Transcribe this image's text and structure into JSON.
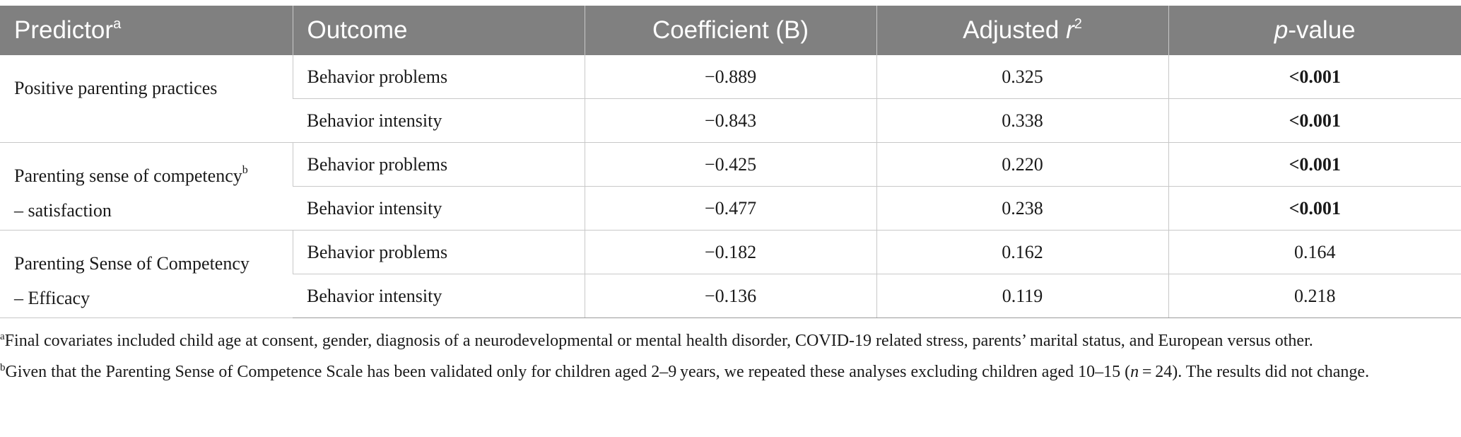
{
  "header": {
    "predictor": "Predictor",
    "predictor_sup": "a",
    "outcome": "Outcome",
    "coefficient": "Coefficient (B)",
    "adjusted_prefix": "Adjusted ",
    "adjusted_r": "r",
    "adjusted_sup": "2",
    "p_italic": "p",
    "p_rest": "-value"
  },
  "groups": [
    {
      "predictor_line1": "Positive parenting practices",
      "predictor_sup": "",
      "predictor_line2": "",
      "rows": [
        {
          "outcome": "Behavior problems",
          "coefficient": "−0.889",
          "adj_r2": "0.325",
          "p_value": "<0.001",
          "p_bold": true
        },
        {
          "outcome": "Behavior intensity",
          "coefficient": "−0.843",
          "adj_r2": "0.338",
          "p_value": "<0.001",
          "p_bold": true
        }
      ]
    },
    {
      "predictor_line1": "Parenting sense of competency",
      "predictor_sup": "b",
      "predictor_line2": "– satisfaction",
      "rows": [
        {
          "outcome": "Behavior problems",
          "coefficient": "−0.425",
          "adj_r2": "0.220",
          "p_value": "<0.001",
          "p_bold": true
        },
        {
          "outcome": "Behavior intensity",
          "coefficient": "−0.477",
          "adj_r2": "0.238",
          "p_value": "<0.001",
          "p_bold": true
        }
      ]
    },
    {
      "predictor_line1": "Parenting Sense of Competency",
      "predictor_sup": "",
      "predictor_line2": "– Efficacy",
      "rows": [
        {
          "outcome": "Behavior problems",
          "coefficient": "−0.182",
          "adj_r2": "0.162",
          "p_value": "0.164",
          "p_bold": false
        },
        {
          "outcome": "Behavior intensity",
          "coefficient": "−0.136",
          "adj_r2": "0.119",
          "p_value": "0.218",
          "p_bold": false
        }
      ]
    }
  ],
  "footnotes": {
    "a_marker": "a",
    "a_text": "Final covariates included child age at consent, gender, diagnosis of a neurodevelopmental or mental health disorder, COVID-19 related stress, parents’ marital status, and European versus other.",
    "b_marker": "b",
    "b_text_1": "Given that the Parenting Sense of Competence Scale has been validated only for children aged 2–9 years, we repeated these analyses excluding children aged 10–15 (",
    "b_n": "n",
    "b_text_2": " = 24). The results did not change."
  }
}
